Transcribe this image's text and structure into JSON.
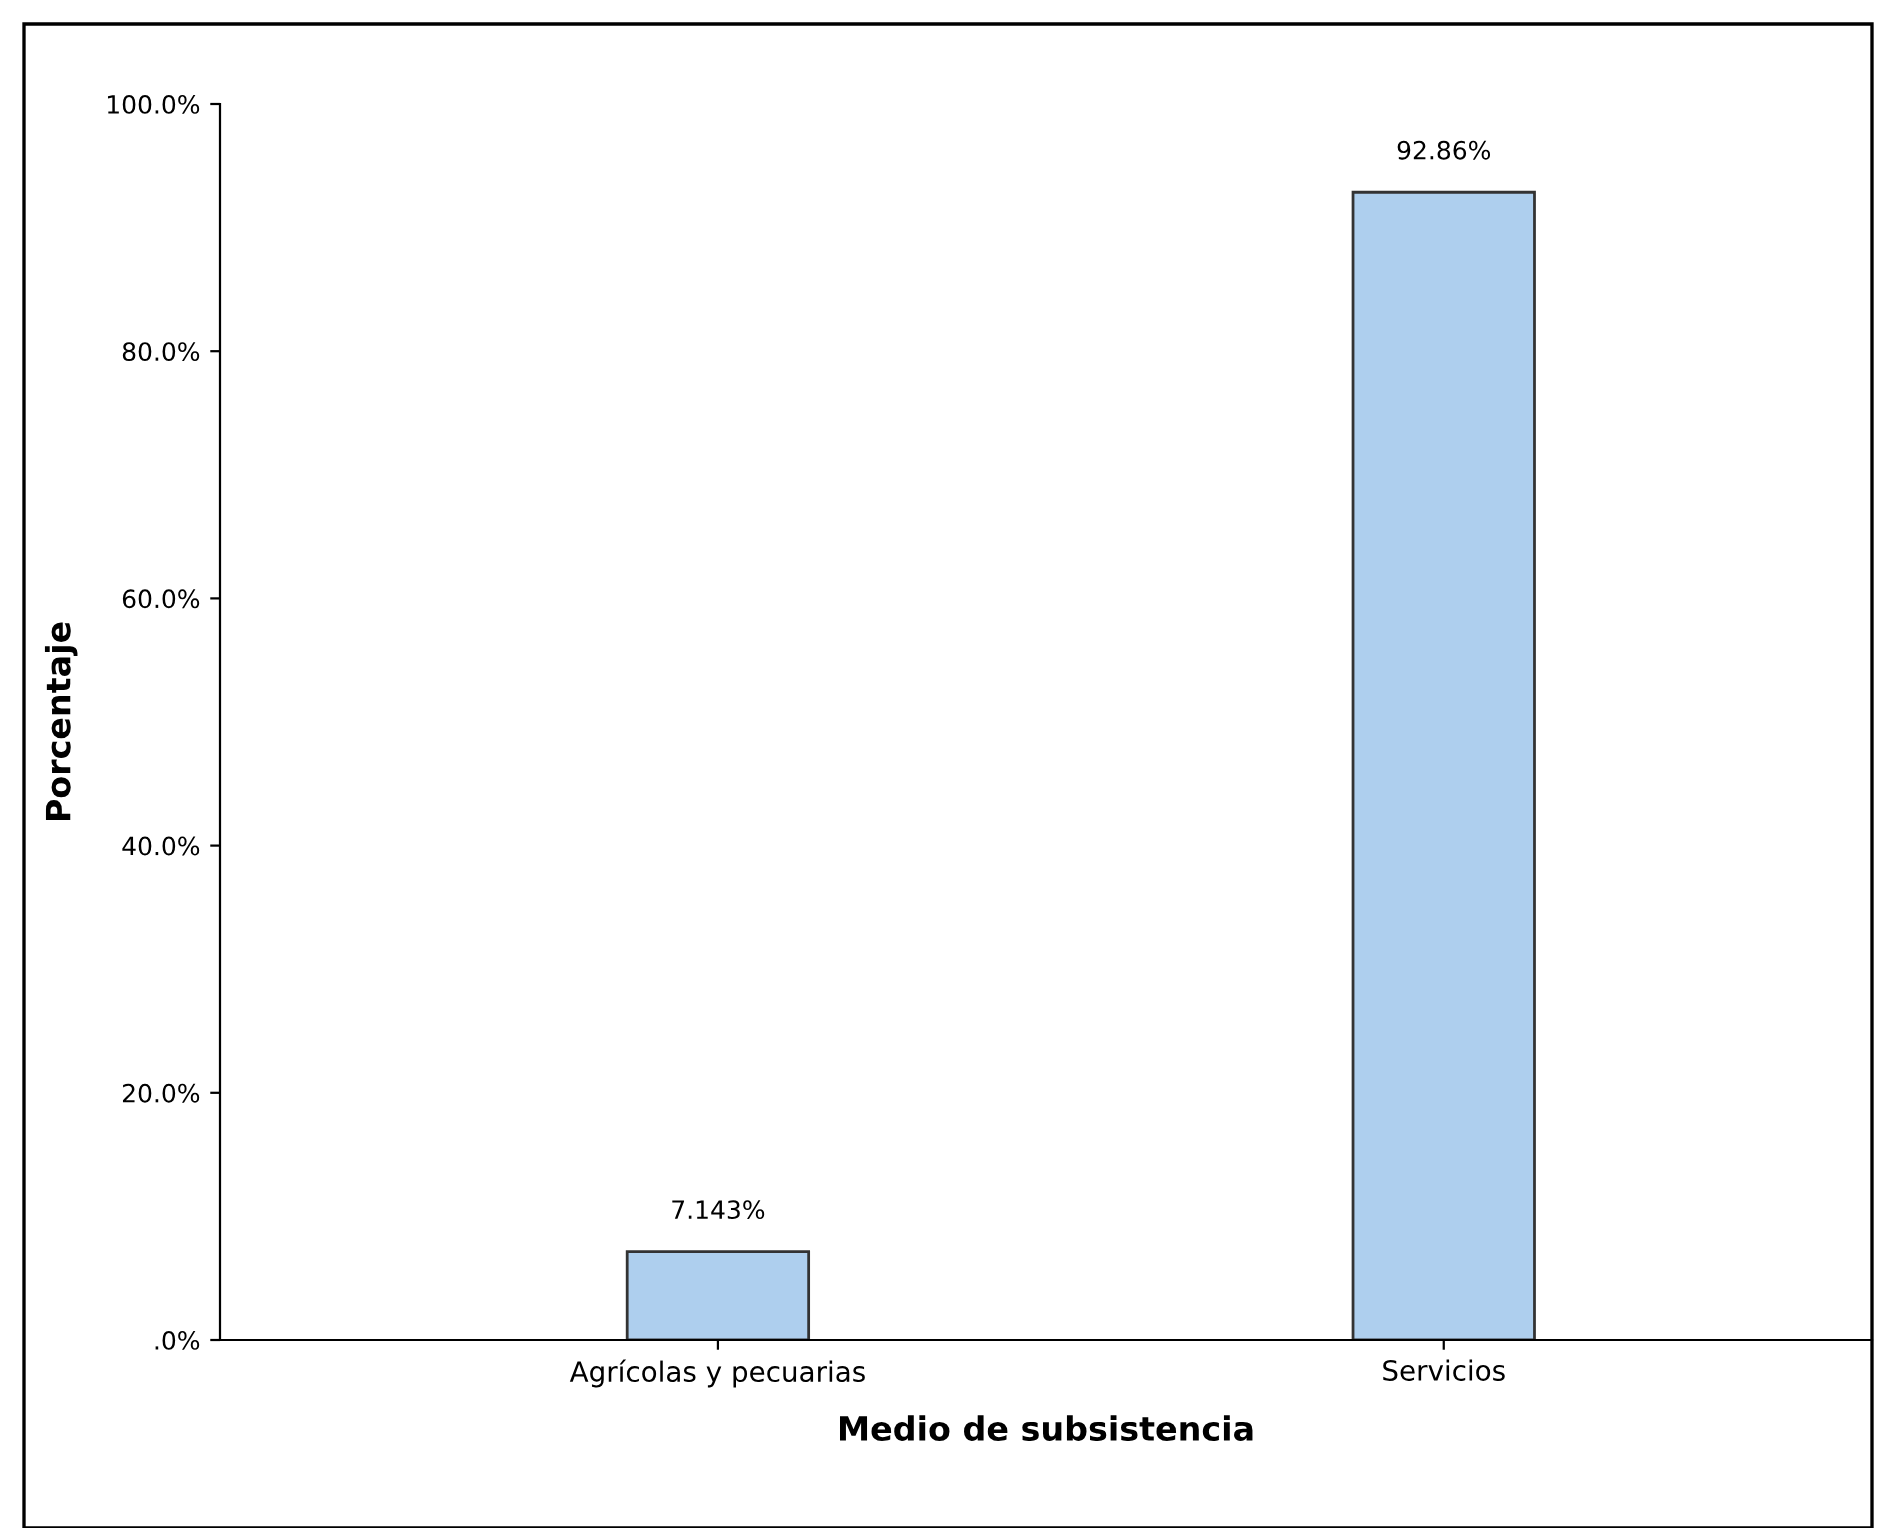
{
  "chart_data": {
    "type": "bar",
    "xlabel": "Medio de subsistencia",
    "ylabel": "Porcentaje",
    "categories": [
      "Agrícolas y pecuarias",
      "Servicios"
    ],
    "values": [
      7.143,
      92.86
    ],
    "value_labels": [
      "7.143%",
      "92.86%"
    ],
    "color": "#aecfee",
    "ylim": [
      0,
      100
    ],
    "yticks": [
      {
        "value": 0,
        "label": ".0%"
      },
      {
        "value": 20,
        "label": "20.0%"
      },
      {
        "value": 40,
        "label": "40.0%"
      },
      {
        "value": 60,
        "label": "60.0%"
      },
      {
        "value": 80,
        "label": "80.0%"
      },
      {
        "value": 100,
        "label": "100.0%"
      }
    ],
    "grid": false
  }
}
